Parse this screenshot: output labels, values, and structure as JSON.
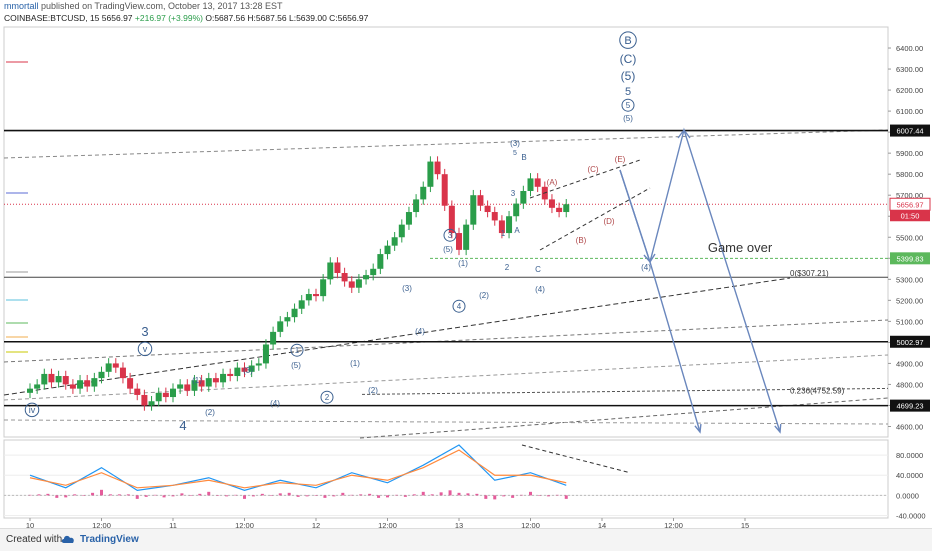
{
  "header": {
    "author": "mmortall",
    "published": "published on TradingView.com, October 13, 2017 13:28 EST",
    "symbol": "COINBASE:BTCUSD, 15",
    "last": "5656.97",
    "change": "+216.97 (+3.99%)",
    "ohlc": "O:5687.56  H:5687.56  L:5639.00  C:5656.97"
  },
  "footer": {
    "created_with": "Created with",
    "brand": "TradingView",
    "brand_icon": "tradingview-cloud-icon"
  },
  "colors": {
    "up": "#2a9d4a",
    "down": "#d9344a",
    "projection": "#6a87bd",
    "support": "#5cb85c",
    "wave_label": "#3a5f8f",
    "macd": "#2196f3",
    "signal": "#ff8a3d",
    "hist": "#e0408a"
  },
  "chart_data": [
    {
      "type": "line",
      "title": "",
      "x_ticks": [
        "10",
        "12:00",
        "11",
        "12:00",
        "12",
        "12:00",
        "13",
        "12:00",
        "14",
        "12:00",
        "15"
      ],
      "ylim": [
        4550,
        6500
      ],
      "y_ticks": [
        4600,
        4700,
        4800,
        4900,
        5000,
        5100,
        5200,
        5300,
        5400,
        5500,
        5600,
        5700,
        5800,
        5900,
        6000,
        6100,
        6200,
        6300,
        6400
      ],
      "y_tick_labels": [
        "4600.00",
        "4700.00",
        "4800.00",
        "4900.00",
        "5000.00",
        "5100.00",
        "5200.00",
        "5300.00",
        "5400.00",
        "5500.00",
        "5600.00",
        "5700.00",
        "5800.00",
        "5900.00",
        "6000.00",
        "6100.00",
        "6200.00",
        "6300.00",
        "6400.00"
      ],
      "series": [
        {
          "x": [
            0,
            0.05,
            0.1,
            0.15,
            0.2,
            0.25,
            0.3,
            0.35,
            0.4,
            0.45,
            0.5,
            0.55,
            0.6,
            0.65,
            0.7,
            0.75,
            0.8,
            0.85,
            0.9,
            0.95,
            1.0,
            1.05,
            1.1,
            1.15,
            1.2,
            1.25,
            1.3,
            1.35,
            1.4,
            1.45,
            1.5,
            1.55,
            1.6,
            1.65,
            1.7,
            1.75,
            1.8,
            1.85,
            1.9,
            1.95,
            2.0,
            2.05,
            2.1,
            2.15,
            2.2,
            2.25,
            2.3,
            2.35,
            2.4,
            2.45,
            2.5,
            2.55,
            2.6,
            2.65,
            2.7,
            2.75,
            2.8,
            2.85,
            2.9,
            2.95,
            3.0,
            3.05,
            3.1,
            3.15,
            3.2,
            3.25,
            3.3,
            3.35,
            3.4,
            3.45,
            3.5,
            3.55,
            3.6,
            3.65,
            3.7,
            3.75
          ],
          "y": [
            4780,
            4800,
            4850,
            4810,
            4840,
            4800,
            4780,
            4820,
            4790,
            4830,
            4860,
            4900,
            4880,
            4830,
            4780,
            4750,
            4700,
            4720,
            4760,
            4740,
            4780,
            4800,
            4770,
            4820,
            4790,
            4830,
            4810,
            4850,
            4840,
            4880,
            4860,
            4890,
            4900,
            4990,
            5050,
            5100,
            5120,
            5160,
            5200,
            5230,
            5220,
            5300,
            5380,
            5330,
            5290,
            5260,
            5300,
            5320,
            5350,
            5420,
            5460,
            5500,
            5560,
            5620,
            5680,
            5740,
            5860,
            5800,
            5650,
            5520,
            5440,
            5560,
            5700,
            5650,
            5620,
            5580,
            5520,
            5600,
            5660,
            5720,
            5780,
            5740,
            5680,
            5640,
            5620,
            5657
          ]
        }
      ],
      "levels": [
        {
          "value": 6007.44,
          "label": "6007.44"
        },
        {
          "value": 5002.97,
          "label": "5002.97"
        },
        {
          "value": 4699.23,
          "label": "4699.23"
        },
        {
          "value": 5399.83,
          "label": "5399.83"
        }
      ],
      "current_price": {
        "value": 5656.97,
        "label": "5656.97",
        "countdown": "01:50"
      },
      "fib": [
        {
          "value": 5310,
          "label": "0($307.21)"
        },
        {
          "value": 4752.59,
          "label": "0.236(4752.59)"
        }
      ],
      "annotations": [
        {
          "text": "Game over"
        },
        {
          "text": "B",
          "circled": true
        },
        {
          "text": "(C)"
        },
        {
          "text": "(5)"
        },
        {
          "text": "5"
        },
        {
          "text": "5",
          "circled": true
        },
        {
          "text": "(5)"
        },
        {
          "text": "3"
        },
        {
          "text": "v",
          "circled": true
        },
        {
          "text": "iv",
          "circled": true
        },
        {
          "text": "4"
        },
        {
          "text": "(1)"
        },
        {
          "text": "(2)"
        },
        {
          "text": "(3)"
        },
        {
          "text": "(4)"
        },
        {
          "text": "1",
          "circled": true
        },
        {
          "text": "(5)"
        },
        {
          "text": "2",
          "circled": true
        },
        {
          "text": "(1)"
        },
        {
          "text": "(2)"
        },
        {
          "text": "(3)"
        },
        {
          "text": "(4)"
        },
        {
          "text": "3",
          "circled": true
        },
        {
          "text": "(5)"
        },
        {
          "text": "(1)"
        },
        {
          "text": "(2)"
        },
        {
          "text": "4",
          "circled": true
        },
        {
          "text": "(4)"
        },
        {
          "text": "1"
        },
        {
          "text": "2"
        },
        {
          "text": "A"
        },
        {
          "text": "B"
        },
        {
          "text": "C"
        },
        {
          "text": "(3)"
        },
        {
          "text": "5"
        },
        {
          "text": "3"
        },
        {
          "text": "(A)"
        },
        {
          "text": "(B)"
        },
        {
          "text": "(C)"
        },
        {
          "text": "(D)"
        },
        {
          "text": "(E)"
        },
        {
          "text": "(4)"
        }
      ]
    },
    {
      "type": "line",
      "title": "",
      "ylim": [
        -45,
        110
      ],
      "y_ticks": [
        -40,
        0,
        40,
        80
      ],
      "y_tick_labels": [
        "-40.0000",
        "0.0000",
        "40.0000",
        "80.0000"
      ],
      "series": [
        {
          "x": [
            0,
            0.25,
            0.5,
            0.75,
            1.0,
            1.25,
            1.5,
            1.75,
            2.0,
            2.25,
            2.5,
            2.75,
            3.0,
            3.25,
            3.5,
            3.75
          ],
          "y": [
            40,
            15,
            55,
            10,
            20,
            35,
            10,
            30,
            15,
            45,
            25,
            60,
            100,
            30,
            45,
            20
          ]
        },
        {
          "x": [
            0,
            0.25,
            0.5,
            0.75,
            1.0,
            1.25,
            1.5,
            1.75,
            2.0,
            2.25,
            2.5,
            2.75,
            3.0,
            3.25,
            3.5,
            3.75
          ],
          "y": [
            35,
            20,
            45,
            15,
            20,
            30,
            15,
            25,
            20,
            40,
            30,
            55,
            90,
            40,
            40,
            25
          ]
        }
      ]
    }
  ]
}
